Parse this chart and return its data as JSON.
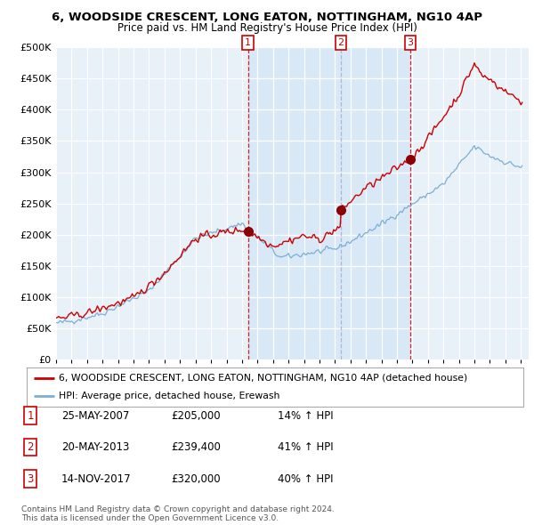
{
  "title": "6, WOODSIDE CRESCENT, LONG EATON, NOTTINGHAM, NG10 4AP",
  "subtitle": "Price paid vs. HM Land Registry's House Price Index (HPI)",
  "sales": [
    {
      "date_dec": 2007.38,
      "price": 205000,
      "label": "1"
    },
    {
      "date_dec": 2013.38,
      "price": 239400,
      "label": "2"
    },
    {
      "date_dec": 2017.87,
      "price": 320000,
      "label": "3"
    }
  ],
  "legend_house": "6, WOODSIDE CRESCENT, LONG EATON, NOTTINGHAM, NG10 4AP (detached house)",
  "legend_hpi": "HPI: Average price, detached house, Erewash",
  "table_rows": [
    {
      "num": "1",
      "date": "25-MAY-2007",
      "price": "£205,000",
      "hpi": "14% ↑ HPI"
    },
    {
      "num": "2",
      "date": "20-MAY-2013",
      "price": "£239,400",
      "hpi": "41% ↑ HPI"
    },
    {
      "num": "3",
      "date": "14-NOV-2017",
      "price": "£320,000",
      "hpi": "40% ↑ HPI"
    }
  ],
  "footer": "Contains HM Land Registry data © Crown copyright and database right 2024.\nThis data is licensed under the Open Government Licence v3.0.",
  "house_color": "#cc0000",
  "hpi_color": "#7bafd4",
  "shade_color": "#d0e4f7",
  "bg_color": "#e8f0f8",
  "plot_bg": "#e8f0f8",
  "ylim": [
    0,
    500000
  ],
  "yticks": [
    0,
    50000,
    100000,
    150000,
    200000,
    250000,
    300000,
    350000,
    400000,
    450000,
    500000
  ],
  "xmin": 1995.0,
  "xmax": 2025.5
}
